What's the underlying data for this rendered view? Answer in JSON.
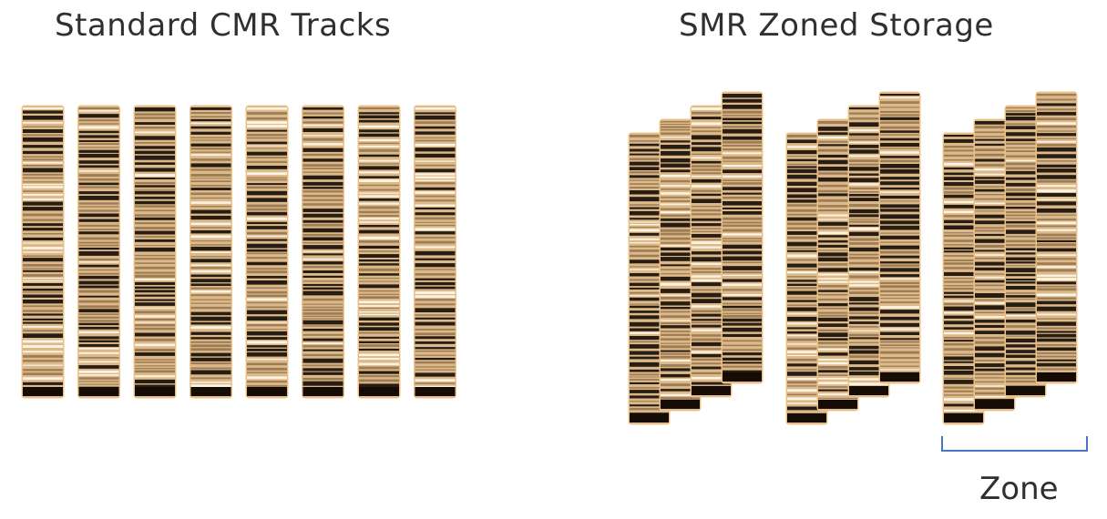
{
  "titles": {
    "cmr": "Standard CMR Tracks",
    "smr": "SMR Zoned Storage"
  },
  "annotation": {
    "zone_label": "Zone"
  },
  "layout_counts": {
    "cmr_tracks": 8,
    "smr_zones": 3,
    "tracks_per_zone": 4
  },
  "colors": {
    "track_light": "#dcb98a",
    "track_dark": "#140c05",
    "track_edge": "#f0c68a",
    "bracket": "#4a74c9",
    "text": "#2f2f2f"
  }
}
